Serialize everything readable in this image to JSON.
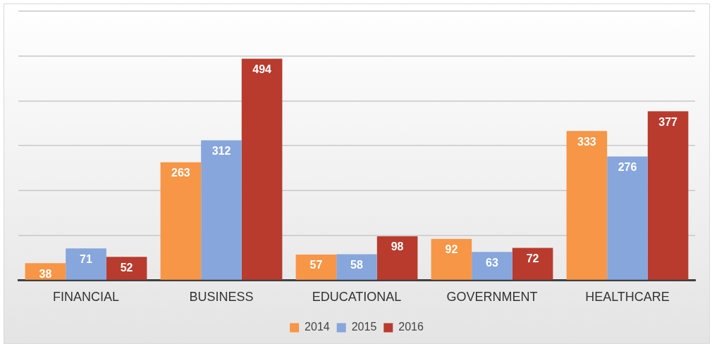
{
  "chart_data": {
    "type": "bar",
    "categories": [
      "FINANCIAL",
      "BUSINESS",
      "EDUCATIONAL",
      "GOVERNMENT",
      "HEALTHCARE"
    ],
    "series": [
      {
        "name": "2014",
        "color": "#f79646",
        "values": [
          38,
          263,
          57,
          92,
          333
        ]
      },
      {
        "name": "2015",
        "color": "#86a6dc",
        "values": [
          71,
          312,
          58,
          63,
          276
        ]
      },
      {
        "name": "2016",
        "color": "#b83b2e",
        "values": [
          52,
          494,
          98,
          72,
          377
        ]
      }
    ],
    "ylim": [
      0,
      600
    ],
    "yticks": [
      {
        "value": 0,
        "label": null
      },
      {
        "value": 100,
        "label": null
      },
      {
        "value": 200,
        "label": null
      },
      {
        "value": 300,
        "label": null
      },
      {
        "value": 400,
        "label": null
      },
      {
        "value": 500,
        "label": null
      },
      {
        "value": 600,
        "label": null
      }
    ],
    "tick_labels": "x",
    "grid": "y",
    "legend": "bottom",
    "data_labels": true
  }
}
